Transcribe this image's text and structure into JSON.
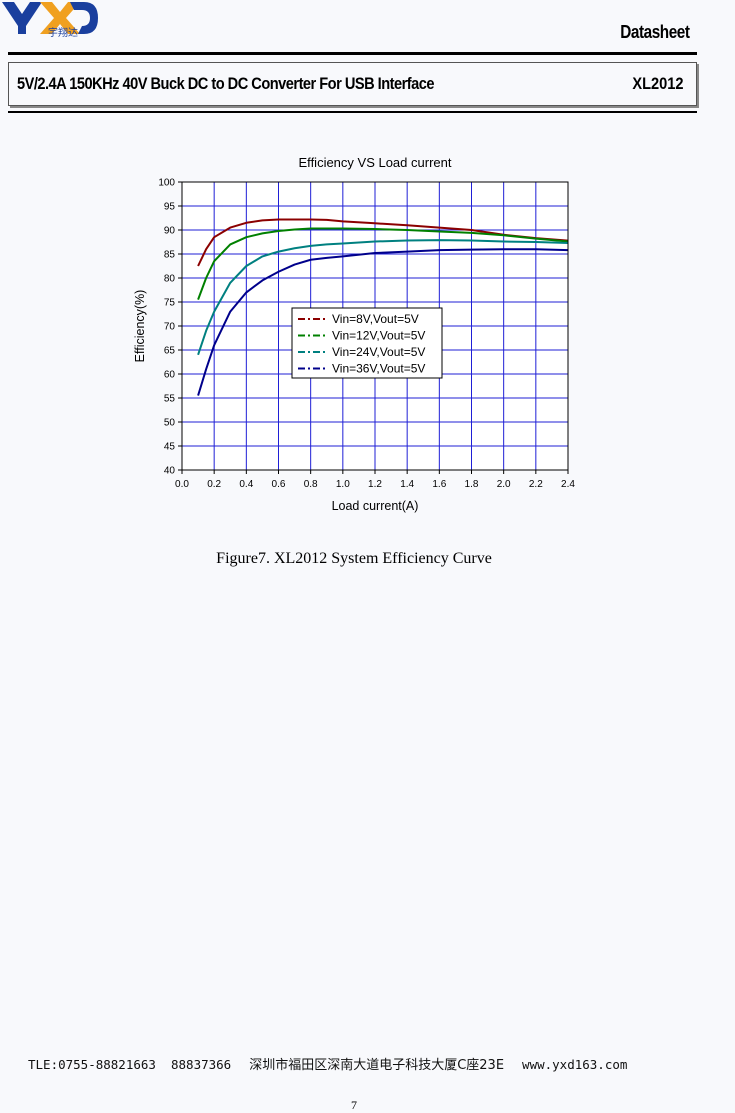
{
  "header": {
    "logo_text": "YXD",
    "logo_subtext": "宇翔达",
    "doc_type": "Datasheet",
    "title": "5V/2.4A 150KHz 40V Buck DC to DC Converter For USB Interface",
    "part_number": "XL2012"
  },
  "chart_data": {
    "type": "line",
    "title": "Efficiency VS Load current",
    "xlabel": "Load current(A)",
    "ylabel": "Efficiency(%)",
    "xlim": [
      0.0,
      2.4
    ],
    "ylim": [
      40,
      100
    ],
    "xticks": [
      "0.0",
      "0.2",
      "0.4",
      "0.6",
      "0.8",
      "1.0",
      "1.2",
      "1.4",
      "1.6",
      "1.8",
      "2.0",
      "2.2",
      "2.4"
    ],
    "yticks": [
      "40",
      "45",
      "50",
      "55",
      "60",
      "65",
      "70",
      "75",
      "80",
      "85",
      "90",
      "95",
      "100"
    ],
    "grid": true,
    "legend_position": "center",
    "x": [
      0.1,
      0.15,
      0.2,
      0.3,
      0.4,
      0.5,
      0.6,
      0.7,
      0.8,
      0.9,
      1.0,
      1.2,
      1.4,
      1.6,
      1.8,
      2.0,
      2.2,
      2.4
    ],
    "series": [
      {
        "name": "Vin=8V,Vout=5V",
        "color": "#8b0000",
        "values": [
          82.5,
          86,
          88.5,
          90.5,
          91.5,
          92,
          92.2,
          92.2,
          92.2,
          92.1,
          91.8,
          91.4,
          91,
          90.5,
          90,
          89,
          88.3,
          87.8
        ]
      },
      {
        "name": "Vin=12V,Vout=5V",
        "color": "#008000",
        "values": [
          75.5,
          80,
          83.5,
          87,
          88.5,
          89.3,
          89.8,
          90.1,
          90.3,
          90.3,
          90.3,
          90.2,
          90,
          89.7,
          89.4,
          88.9,
          88.2,
          87.6
        ]
      },
      {
        "name": "Vin=24V,Vout=5V",
        "color": "#008080",
        "values": [
          64,
          69,
          73,
          79,
          82.5,
          84.5,
          85.5,
          86.2,
          86.7,
          87,
          87.2,
          87.6,
          87.8,
          87.9,
          87.8,
          87.6,
          87.5,
          87.3
        ]
      },
      {
        "name": "Vin=36V,Vout=5V",
        "color": "#00008b",
        "values": [
          55.5,
          61,
          66,
          73,
          77,
          79.5,
          81.3,
          82.8,
          83.8,
          84.2,
          84.5,
          85.2,
          85.5,
          85.8,
          85.9,
          86,
          86,
          85.8
        ]
      }
    ]
  },
  "caption": "Figure7. XL2012 System Efficiency Curve",
  "footer": {
    "tel": "TLE:0755-88821663  88837366",
    "address": "深圳市福田区深南大道电子科技大厦C座23E",
    "website": "www.yxd163.com",
    "page_number": "7"
  }
}
